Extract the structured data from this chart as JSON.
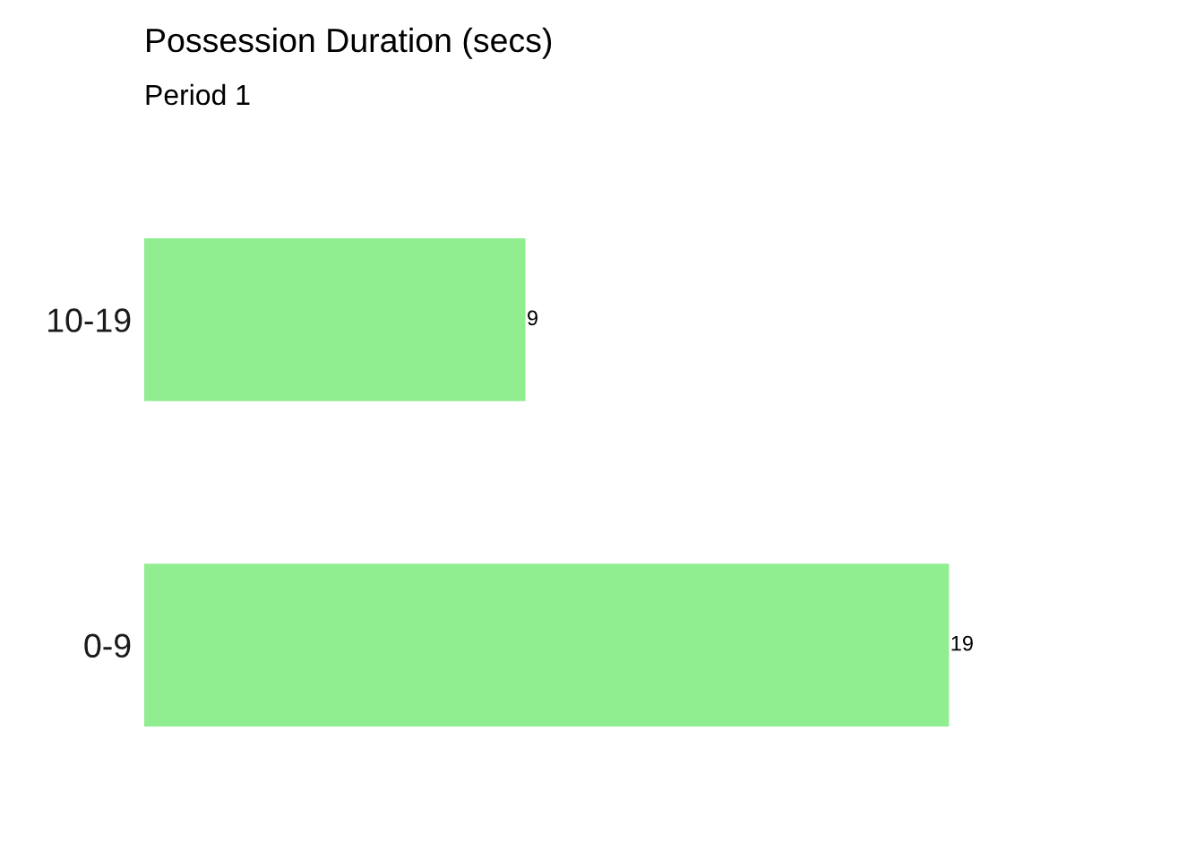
{
  "chart_data": {
    "type": "bar",
    "orientation": "horizontal",
    "title": "Possession Duration (secs)",
    "subtitle": "Period 1",
    "categories": [
      "10-19",
      "0-9"
    ],
    "values": [
      9,
      19
    ],
    "color": "#90ee90",
    "data_labels": true,
    "tick_labels": "y",
    "grid": false
  }
}
